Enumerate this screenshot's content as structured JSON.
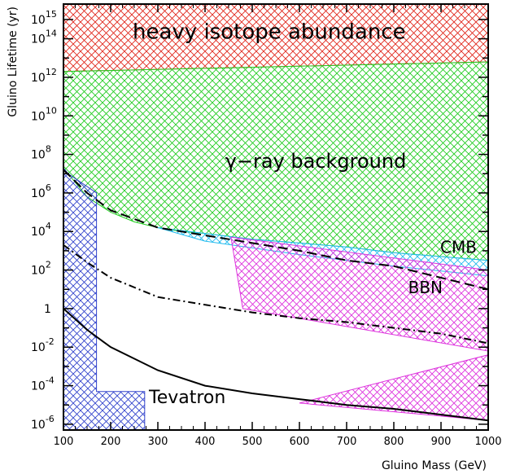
{
  "chart_data": {
    "type": "area",
    "xlabel": "Gluino Mass (GeV)",
    "ylabel": "Gluino Lifetime (yr)",
    "xlim": [
      100,
      1000
    ],
    "ylim_log10": [
      -6.3,
      15.8
    ],
    "y_scale": "log",
    "x_ticks": [
      {
        "value": 100,
        "label": "100"
      },
      {
        "value": 200,
        "label": "200"
      },
      {
        "value": 300,
        "label": "300"
      },
      {
        "value": 400,
        "label": "400"
      },
      {
        "value": 500,
        "label": "500"
      },
      {
        "value": 600,
        "label": "600"
      },
      {
        "value": 700,
        "label": "700"
      },
      {
        "value": 800,
        "label": "800"
      },
      {
        "value": 900,
        "label": "900"
      },
      {
        "value": 1000,
        "label": "1000"
      }
    ],
    "y_ticks": [
      {
        "exp": 15,
        "base": "10",
        "sup": "15"
      },
      {
        "exp": 14,
        "base": "10",
        "sup": "14"
      },
      {
        "exp": 12,
        "base": "10",
        "sup": "12"
      },
      {
        "exp": 10,
        "base": "10",
        "sup": "10"
      },
      {
        "exp": 8,
        "base": "10",
        "sup": "8"
      },
      {
        "exp": 6,
        "base": "10",
        "sup": "6"
      },
      {
        "exp": 4,
        "base": "10",
        "sup": "4"
      },
      {
        "exp": 2,
        "base": "10",
        "sup": "2"
      },
      {
        "exp": 0,
        "base": "1",
        "sup": ""
      },
      {
        "exp": -2,
        "base": "10",
        "sup": "-2"
      },
      {
        "exp": -4,
        "base": "10",
        "sup": "-4"
      },
      {
        "exp": -6,
        "base": "10",
        "sup": "-6"
      }
    ],
    "regions": [
      {
        "label": "heavy isotope abundance",
        "color": "#e0271c",
        "label_pos": [
          100,
          1000
        ],
        "label_x": 330,
        "label_log_y": 14.0,
        "polygon": [
          [
            100,
            12.3
          ],
          [
            1000,
            12.8
          ],
          [
            1000,
            15.8
          ],
          [
            100,
            15.8
          ]
        ]
      },
      {
        "label": "γ−ray background",
        "color": "#22cc22",
        "label_x": 465,
        "label_log_y": 7.3,
        "polygon": [
          [
            100,
            12.3
          ],
          [
            1000,
            12.8
          ],
          [
            1000,
            2.5
          ],
          [
            900,
            2.7
          ],
          [
            800,
            2.9
          ],
          [
            700,
            3.2
          ],
          [
            600,
            3.4
          ],
          [
            500,
            3.6
          ],
          [
            400,
            3.9
          ],
          [
            350,
            4.0
          ],
          [
            300,
            4.2
          ],
          [
            250,
            4.5
          ],
          [
            200,
            5.0
          ],
          [
            150,
            5.8
          ],
          [
            100,
            7.3
          ]
        ]
      },
      {
        "label": "CMB",
        "color": "#22bbee",
        "label_x": 960,
        "label_log_y": 2.9,
        "polygon": [
          [
            300,
            4.2
          ],
          [
            400,
            3.9
          ],
          [
            500,
            3.6
          ],
          [
            600,
            3.4
          ],
          [
            700,
            3.2
          ],
          [
            800,
            2.9
          ],
          [
            900,
            2.7
          ],
          [
            1000,
            2.5
          ],
          [
            1000,
            1.7
          ],
          [
            800,
            2.2
          ],
          [
            600,
            2.8
          ],
          [
            400,
            3.5
          ]
        ]
      },
      {
        "label": "BBN",
        "color": "#dd33dd",
        "label_x": 920,
        "label_log_y": 0.8,
        "polygon": [
          [
            455,
            3.7
          ],
          [
            1000,
            2.0
          ],
          [
            1000,
            -2.2
          ],
          [
            480,
            0.0
          ]
        ]
      },
      {
        "label": "",
        "color": "#dd33dd",
        "label_x": null,
        "label_log_y": null,
        "polygon": [
          [
            600,
            -4.9
          ],
          [
            1000,
            -2.4
          ],
          [
            1000,
            -5.8
          ]
        ]
      },
      {
        "label": "Tevatron",
        "color": "#3344cc",
        "label_x": 190,
        "label_log_y": -4.9,
        "polygon": [
          [
            100,
            7.3
          ],
          [
            110,
            7.0
          ],
          [
            170,
            6.0
          ],
          [
            170,
            -4.3
          ],
          [
            272,
            -4.3
          ],
          [
            272,
            -6.3
          ],
          [
            100,
            -6.3
          ]
        ]
      }
    ],
    "series": [
      {
        "style": "dashed",
        "points": [
          [
            100,
            7.2
          ],
          [
            150,
            6.0
          ],
          [
            200,
            5.1
          ],
          [
            300,
            4.2
          ],
          [
            400,
            3.8
          ],
          [
            500,
            3.4
          ],
          [
            600,
            3.0
          ],
          [
            700,
            2.5
          ],
          [
            800,
            2.2
          ],
          [
            900,
            1.6
          ],
          [
            1000,
            1.0
          ]
        ]
      },
      {
        "style": "dashdot",
        "points": [
          [
            100,
            3.3
          ],
          [
            150,
            2.4
          ],
          [
            200,
            1.6
          ],
          [
            300,
            0.6
          ],
          [
            400,
            0.2
          ],
          [
            500,
            -0.2
          ],
          [
            600,
            -0.5
          ],
          [
            700,
            -0.7
          ],
          [
            800,
            -1.0
          ],
          [
            900,
            -1.3
          ],
          [
            1000,
            -1.8
          ]
        ]
      },
      {
        "style": "solid",
        "points": [
          [
            100,
            0.0
          ],
          [
            150,
            -1.1
          ],
          [
            200,
            -2.0
          ],
          [
            300,
            -3.2
          ],
          [
            400,
            -4.0
          ],
          [
            500,
            -4.4
          ],
          [
            600,
            -4.7
          ],
          [
            700,
            -5.0
          ],
          [
            800,
            -5.2
          ],
          [
            900,
            -5.5
          ],
          [
            1000,
            -5.8
          ]
        ]
      }
    ]
  }
}
